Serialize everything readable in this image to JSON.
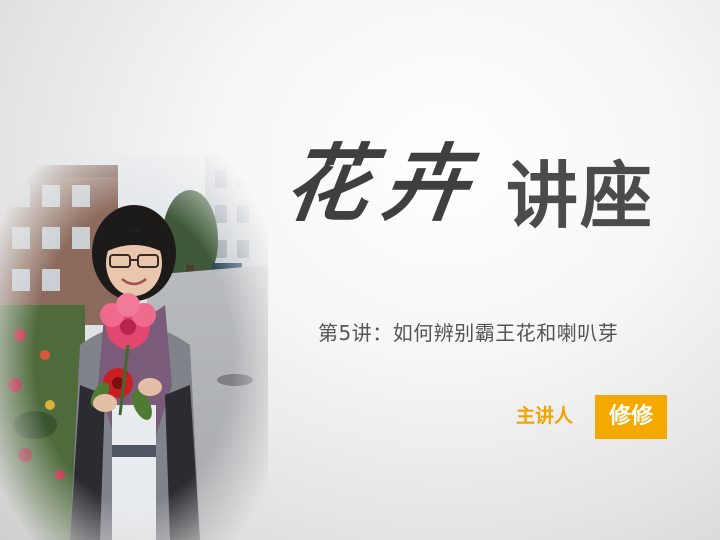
{
  "slide": {
    "title_calligraphy": "花卉",
    "title_main": "讲座",
    "subtitle": "第5讲：如何辨别霸王花和喇叭芽",
    "presenter_label": "主讲人",
    "presenter_name": "修修"
  },
  "colors": {
    "accent": "#f5a900",
    "accent_text": "#f0a400",
    "title": "#4b4b4b",
    "subtitle": "#555555"
  }
}
